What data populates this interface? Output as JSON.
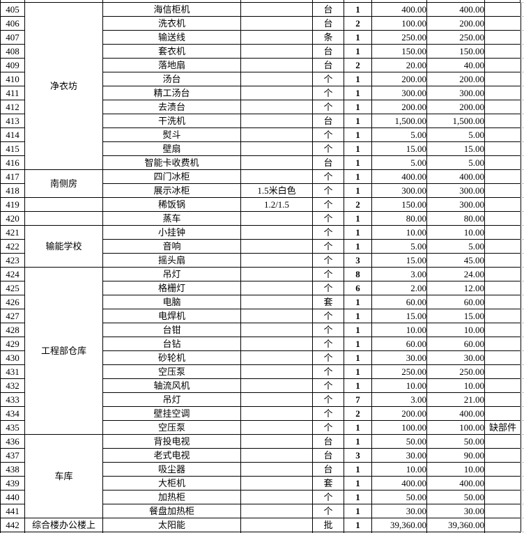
{
  "colors": {
    "background": "#ffffff",
    "border": "#000000",
    "gridline_stub": "#c6c6c6",
    "text": "#000000"
  },
  "table": {
    "rows": [
      {
        "no": "405",
        "category": {
          "label": "净衣坊",
          "rowspan": 12
        },
        "name": "海信柜机",
        "spec": "",
        "unit": "台",
        "qty": "1",
        "unit_price": "400.00",
        "amount": "400.00",
        "remark": ""
      },
      {
        "no": "406",
        "name": "洗衣机",
        "spec": "",
        "unit": "台",
        "qty": "2",
        "unit_price": "100.00",
        "amount": "200.00",
        "remark": ""
      },
      {
        "no": "407",
        "name": "输送线",
        "spec": "",
        "unit": "条",
        "qty": "1",
        "unit_price": "250.00",
        "amount": "250.00",
        "remark": ""
      },
      {
        "no": "408",
        "name": "套衣机",
        "spec": "",
        "unit": "台",
        "qty": "1",
        "unit_price": "150.00",
        "amount": "150.00",
        "remark": ""
      },
      {
        "no": "409",
        "name": "落地扇",
        "spec": "",
        "unit": "台",
        "qty": "2",
        "unit_price": "20.00",
        "amount": "40.00",
        "remark": ""
      },
      {
        "no": "410",
        "name": "汤台",
        "spec": "",
        "unit": "个",
        "qty": "1",
        "unit_price": "200.00",
        "amount": "200.00",
        "remark": ""
      },
      {
        "no": "411",
        "name": "精工汤台",
        "spec": "",
        "unit": "个",
        "qty": "1",
        "unit_price": "300.00",
        "amount": "300.00",
        "remark": ""
      },
      {
        "no": "412",
        "name": "去渍台",
        "spec": "",
        "unit": "个",
        "qty": "1",
        "unit_price": "200.00",
        "amount": "200.00",
        "remark": ""
      },
      {
        "no": "413",
        "name": "干洗机",
        "spec": "",
        "unit": "台",
        "qty": "1",
        "unit_price": "1,500.00",
        "amount": "1,500.00",
        "remark": ""
      },
      {
        "no": "414",
        "name": "熨斗",
        "spec": "",
        "unit": "个",
        "qty": "1",
        "unit_price": "5.00",
        "amount": "5.00",
        "remark": ""
      },
      {
        "no": "415",
        "name": "壁扇",
        "spec": "",
        "unit": "个",
        "qty": "1",
        "unit_price": "15.00",
        "amount": "15.00",
        "remark": ""
      },
      {
        "no": "416",
        "name": "智能卡收费机",
        "spec": "",
        "unit": "台",
        "qty": "1",
        "unit_price": "5.00",
        "amount": "5.00",
        "remark": ""
      },
      {
        "no": "417",
        "category": {
          "label": "南侧房",
          "rowspan": 2
        },
        "name": "四门冰柜",
        "spec": "",
        "unit": "个",
        "qty": "1",
        "unit_price": "400.00",
        "amount": "400.00",
        "remark": ""
      },
      {
        "no": "418",
        "name": "展示冰柜",
        "spec": "1.5米白色",
        "unit": "个",
        "qty": "1",
        "unit_price": "300.00",
        "amount": "300.00",
        "remark": ""
      },
      {
        "no": "419",
        "category": {
          "label": "",
          "rowspan": 1
        },
        "name": "稀饭锅",
        "spec": "1.2/1.5",
        "unit": "个",
        "qty": "2",
        "unit_price": "150.00",
        "amount": "300.00",
        "remark": ""
      },
      {
        "no": "420",
        "category": {
          "label": "",
          "rowspan": 1
        },
        "name": "蒸车",
        "spec": "",
        "unit": "个",
        "qty": "1",
        "unit_price": "80.00",
        "amount": "80.00",
        "remark": ""
      },
      {
        "no": "421",
        "category": {
          "label": "输能学校",
          "rowspan": 3
        },
        "name": "小挂钟",
        "spec": "",
        "unit": "个",
        "qty": "1",
        "unit_price": "10.00",
        "amount": "10.00",
        "remark": ""
      },
      {
        "no": "422",
        "name": "音响",
        "spec": "",
        "unit": "个",
        "qty": "1",
        "unit_price": "5.00",
        "amount": "5.00",
        "remark": ""
      },
      {
        "no": "423",
        "name": "摇头扇",
        "spec": "",
        "unit": "个",
        "qty": "3",
        "unit_price": "15.00",
        "amount": "45.00",
        "remark": ""
      },
      {
        "no": "424",
        "category": {
          "label": "工程部仓库",
          "rowspan": 12
        },
        "name": "吊灯",
        "spec": "",
        "unit": "个",
        "qty": "8",
        "unit_price": "3.00",
        "amount": "24.00",
        "remark": ""
      },
      {
        "no": "425",
        "name": "格栅灯",
        "spec": "",
        "unit": "个",
        "qty": "6",
        "unit_price": "2.00",
        "amount": "12.00",
        "remark": ""
      },
      {
        "no": "426",
        "name": "电脑",
        "spec": "",
        "unit": "套",
        "qty": "1",
        "unit_price": "60.00",
        "amount": "60.00",
        "remark": ""
      },
      {
        "no": "427",
        "name": "电焊机",
        "spec": "",
        "unit": "个",
        "qty": "1",
        "unit_price": "15.00",
        "amount": "15.00",
        "remark": ""
      },
      {
        "no": "428",
        "name": "台钳",
        "spec": "",
        "unit": "个",
        "qty": "1",
        "unit_price": "10.00",
        "amount": "10.00",
        "remark": ""
      },
      {
        "no": "429",
        "name": "台钻",
        "spec": "",
        "unit": "个",
        "qty": "1",
        "unit_price": "60.00",
        "amount": "60.00",
        "remark": ""
      },
      {
        "no": "430",
        "name": "砂轮机",
        "spec": "",
        "unit": "个",
        "qty": "1",
        "unit_price": "30.00",
        "amount": "30.00",
        "remark": ""
      },
      {
        "no": "431",
        "name": "空压泵",
        "spec": "",
        "unit": "个",
        "qty": "1",
        "unit_price": "250.00",
        "amount": "250.00",
        "remark": ""
      },
      {
        "no": "432",
        "name": "轴流风机",
        "spec": "",
        "unit": "个",
        "qty": "1",
        "unit_price": "10.00",
        "amount": "10.00",
        "remark": ""
      },
      {
        "no": "433",
        "name": "吊灯",
        "spec": "",
        "unit": "个",
        "qty": "7",
        "unit_price": "3.00",
        "amount": "21.00",
        "remark": ""
      },
      {
        "no": "434",
        "name": "壁挂空调",
        "spec": "",
        "unit": "个",
        "qty": "2",
        "unit_price": "200.00",
        "amount": "400.00",
        "remark": ""
      },
      {
        "no": "435",
        "name": "空压泵",
        "spec": "",
        "unit": "个",
        "qty": "1",
        "unit_price": "100.00",
        "amount": "100.00",
        "remark": "缺部件"
      },
      {
        "no": "436",
        "category": {
          "label": "车库",
          "rowspan": 6
        },
        "name": "背投电视",
        "spec": "",
        "unit": "台",
        "qty": "1",
        "unit_price": "50.00",
        "amount": "50.00",
        "remark": ""
      },
      {
        "no": "437",
        "name": "老式电视",
        "spec": "",
        "unit": "台",
        "qty": "3",
        "unit_price": "30.00",
        "amount": "90.00",
        "remark": ""
      },
      {
        "no": "438",
        "name": "吸尘器",
        "spec": "",
        "unit": "台",
        "qty": "1",
        "unit_price": "10.00",
        "amount": "10.00",
        "remark": ""
      },
      {
        "no": "439",
        "name": "大柜机",
        "spec": "",
        "unit": "套",
        "qty": "1",
        "unit_price": "400.00",
        "amount": "400.00",
        "remark": ""
      },
      {
        "no": "440",
        "name": "加热柜",
        "spec": "",
        "unit": "个",
        "qty": "1",
        "unit_price": "50.00",
        "amount": "50.00",
        "remark": ""
      },
      {
        "no": "441",
        "name": "餐盘加热柜",
        "spec": "",
        "unit": "个",
        "qty": "1",
        "unit_price": "30.00",
        "amount": "30.00",
        "remark": ""
      },
      {
        "no": "442",
        "category": {
          "label": "综合楼办公楼上",
          "rowspan": 1
        },
        "name": "太阳能",
        "spec": "",
        "unit": "批",
        "qty": "1",
        "unit_price": "39,360.00",
        "amount": "39,360.00",
        "remark": ""
      }
    ]
  }
}
